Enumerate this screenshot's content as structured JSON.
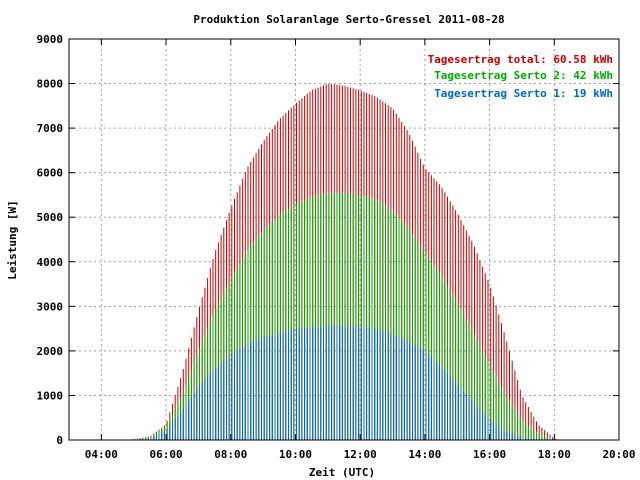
{
  "chart_data": {
    "type": "bar",
    "title": "Produktion Solaranlage Serto-Gressel 2011-08-28",
    "xlabel": "Zeit (UTC)",
    "ylabel": "Leistung [W]",
    "xlim": [
      3.0,
      20.0
    ],
    "ylim": [
      0,
      9000
    ],
    "x_ticks": [
      "04:00",
      "06:00",
      "08:00",
      "10:00",
      "12:00",
      "14:00",
      "16:00",
      "18:00",
      "20:00"
    ],
    "y_ticks": [
      "0",
      "1000",
      "2000",
      "3000",
      "4000",
      "5000",
      "6000",
      "7000",
      "8000",
      "9000"
    ],
    "grid": true,
    "legend_position": "top-right",
    "x_unit": "hours UTC",
    "series": [
      {
        "name": "Tagesertrag total: 60.58 kWh",
        "color": "#cc0000",
        "x": [
          5.0,
          5.5,
          6.0,
          6.5,
          7.0,
          7.5,
          8.0,
          8.5,
          9.0,
          9.5,
          10.0,
          10.5,
          11.0,
          11.5,
          12.0,
          12.5,
          13.0,
          13.5,
          14.0,
          14.5,
          15.0,
          15.5,
          16.0,
          16.5,
          17.0,
          17.5,
          18.0
        ],
        "values": [
          20,
          80,
          350,
          1500,
          2900,
          4200,
          5200,
          6100,
          6700,
          7200,
          7550,
          7850,
          8000,
          7950,
          7850,
          7700,
          7450,
          6900,
          6100,
          5700,
          5100,
          4400,
          3500,
          2300,
          1000,
          350,
          30
        ]
      },
      {
        "name": "Tagesertrag Serto 2: 42 kWh",
        "color": "#00aa00",
        "x": [
          5.0,
          5.5,
          6.0,
          6.5,
          7.0,
          7.5,
          8.0,
          8.5,
          9.0,
          9.5,
          10.0,
          10.5,
          11.0,
          11.5,
          12.0,
          12.5,
          13.0,
          13.5,
          14.0,
          14.5,
          15.0,
          15.5,
          16.0,
          16.5,
          17.0,
          17.5,
          18.0
        ],
        "values": [
          15,
          60,
          300,
          1000,
          2000,
          2900,
          3600,
          4250,
          4700,
          5050,
          5300,
          5450,
          5550,
          5550,
          5500,
          5400,
          5150,
          4750,
          4200,
          3700,
          3100,
          2400,
          1700,
          1000,
          450,
          150,
          15
        ]
      },
      {
        "name": "Tagesertrag Serto 1: 19 kWh",
        "color": "#0066cc",
        "x": [
          5.0,
          5.5,
          6.0,
          6.5,
          7.0,
          7.5,
          8.0,
          8.5,
          9.0,
          9.5,
          10.0,
          10.5,
          11.0,
          11.5,
          12.0,
          12.5,
          13.0,
          13.5,
          14.0,
          14.5,
          15.0,
          15.5,
          16.0,
          16.5,
          17.0,
          17.5,
          18.0
        ],
        "values": [
          10,
          40,
          200,
          650,
          1200,
          1600,
          1900,
          2150,
          2300,
          2400,
          2480,
          2520,
          2560,
          2560,
          2540,
          2480,
          2380,
          2220,
          2000,
          1650,
          1250,
          850,
          450,
          180,
          60,
          15,
          5
        ]
      }
    ]
  }
}
